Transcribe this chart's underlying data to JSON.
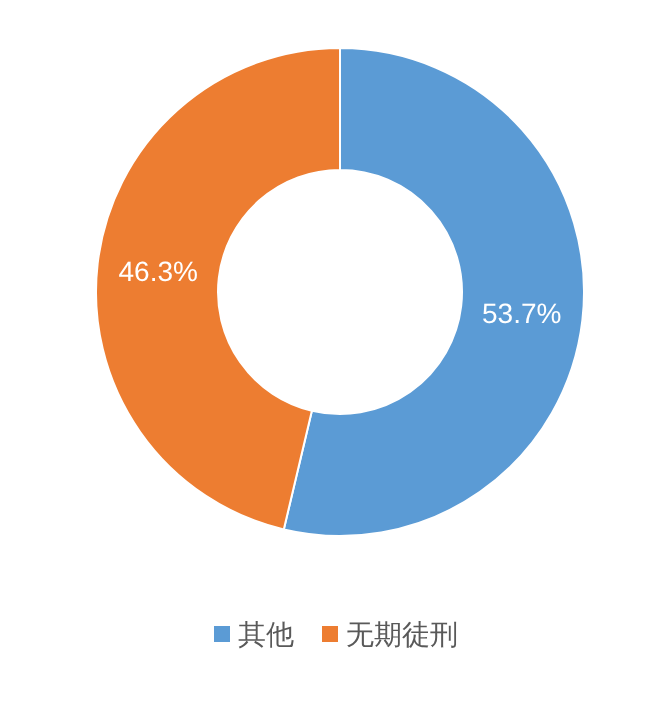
{
  "chart_data": {
    "type": "donut",
    "categories": [
      "其他",
      "无期徒刑"
    ],
    "values": [
      53.7,
      46.3
    ],
    "colors": [
      "#5b9bd5",
      "#ed7d31"
    ],
    "value_labels": [
      "53.7%",
      "46.3%"
    ],
    "legend": "bottom"
  }
}
